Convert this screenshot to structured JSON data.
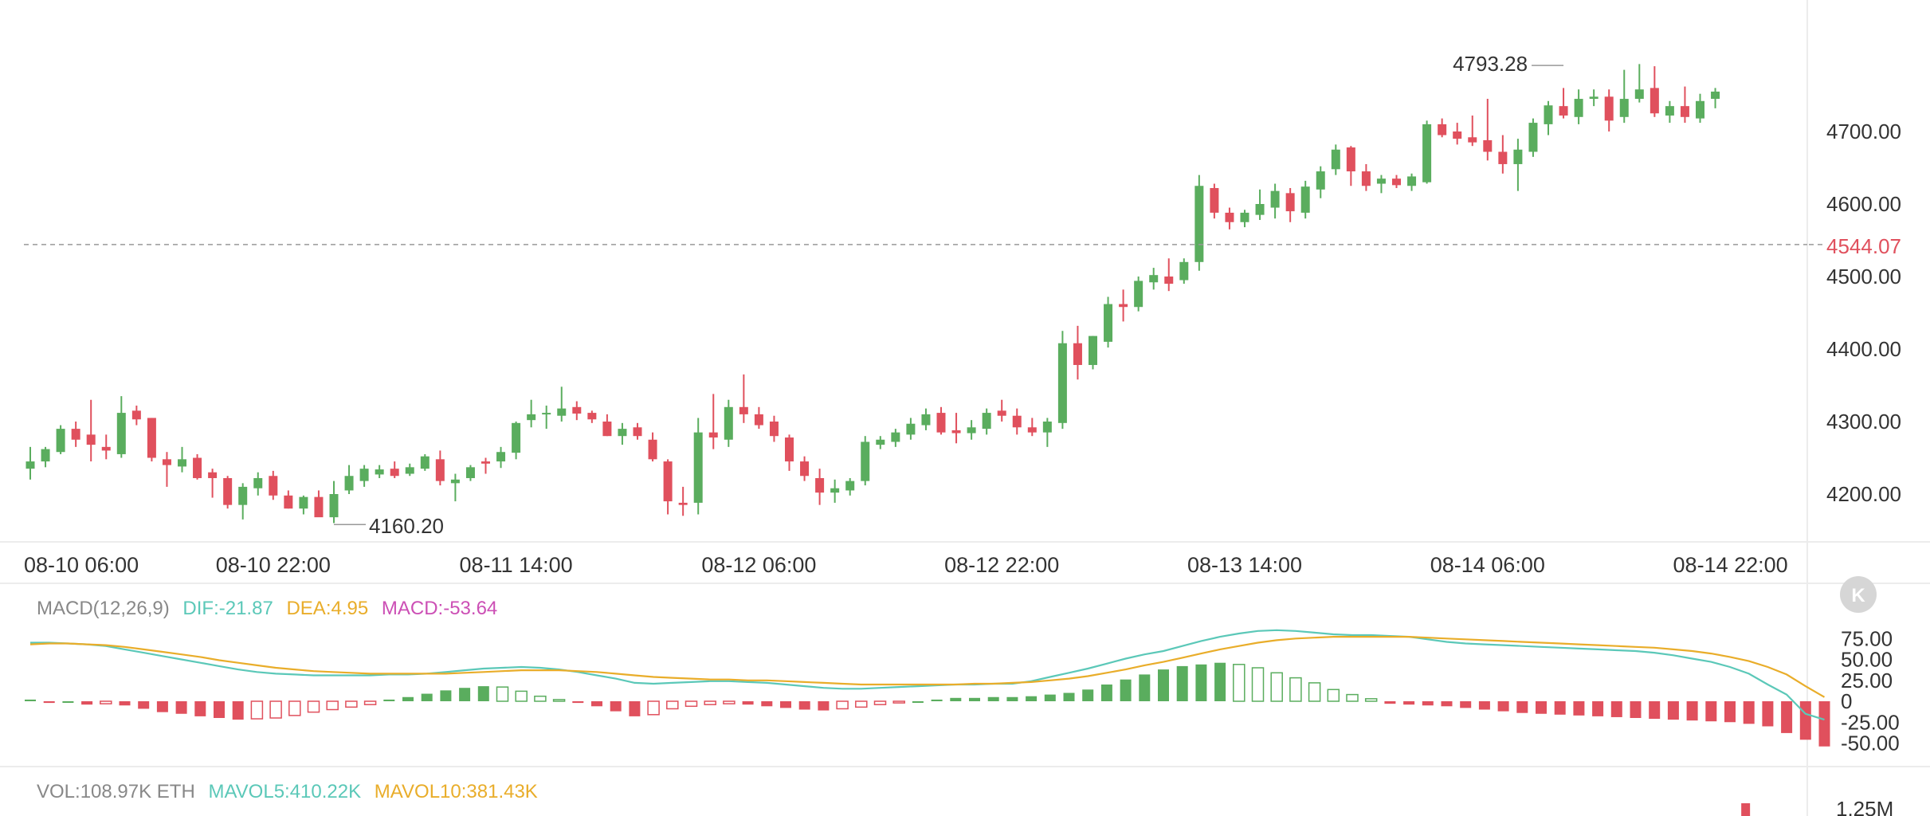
{
  "colors": {
    "up": "#5aad5e",
    "down": "#e0505d",
    "dif": "#5bc8b8",
    "dea": "#e9ad2a",
    "macd_label": "#cc4fb5",
    "last_price": "#e0505d",
    "grid": "#ececec",
    "text": "#333333",
    "muted": "#888888"
  },
  "badge": {
    "icon": "k-logo-icon",
    "glyph": "K"
  },
  "main_chart": {
    "current_price_label": "4544.07",
    "high_marker": "4793.28",
    "low_marker": "4160.20"
  },
  "macd_legend": {
    "params": "MACD(12,26,9)",
    "dif": "DIF:-21.87",
    "dea": "DEA:4.95",
    "macd": "MACD:-53.64"
  },
  "vol_legend": {
    "vol": "VOL:108.97K ETH",
    "mavol5": "MAVOL5:410.22K",
    "mavol10": "MAVOL10:381.43K"
  },
  "vol_axis_label": "1.25M",
  "chart_data": [
    {
      "type": "candlestick",
      "title": "",
      "price_axis_ticks": [
        4700,
        4600,
        4500,
        4400,
        4300,
        4200
      ],
      "price_tick_labels": [
        "4700.00",
        "4600.00",
        "4500.00",
        "4400.00",
        "4300.00",
        "4200.00"
      ],
      "ylim": [
        4130,
        4830
      ],
      "time_labels": [
        "08-10 06:00",
        "08-10 22:00",
        "08-11 14:00",
        "08-12 06:00",
        "08-12 22:00",
        "08-13 14:00",
        "08-14 06:00",
        "08-14 22:00"
      ],
      "time_label_candle_index": [
        0,
        16,
        32,
        48,
        64,
        80,
        96,
        112
      ],
      "current_price": 4544.07,
      "high": 4793.28,
      "high_index": 101,
      "low": 4160.2,
      "low_index": 20,
      "candles": [
        {
          "o": 4235,
          "h": 4265,
          "l": 4220,
          "c": 4245
        },
        {
          "o": 4245,
          "h": 4265,
          "l": 4237,
          "c": 4262
        },
        {
          "o": 4258,
          "h": 4295,
          "l": 4255,
          "c": 4290
        },
        {
          "o": 4290,
          "h": 4300,
          "l": 4265,
          "c": 4275
        },
        {
          "o": 4282,
          "h": 4330,
          "l": 4245,
          "c": 4268
        },
        {
          "o": 4265,
          "h": 4282,
          "l": 4248,
          "c": 4260
        },
        {
          "o": 4255,
          "h": 4335,
          "l": 4250,
          "c": 4312
        },
        {
          "o": 4315,
          "h": 4322,
          "l": 4295,
          "c": 4303
        },
        {
          "o": 4305,
          "h": 4305,
          "l": 4245,
          "c": 4250
        },
        {
          "o": 4248,
          "h": 4258,
          "l": 4210,
          "c": 4240
        },
        {
          "o": 4238,
          "h": 4265,
          "l": 4230,
          "c": 4248
        },
        {
          "o": 4250,
          "h": 4255,
          "l": 4220,
          "c": 4222
        },
        {
          "o": 4230,
          "h": 4235,
          "l": 4195,
          "c": 4222
        },
        {
          "o": 4222,
          "h": 4225,
          "l": 4180,
          "c": 4185
        },
        {
          "o": 4185,
          "h": 4215,
          "l": 4165,
          "c": 4210
        },
        {
          "o": 4208,
          "h": 4230,
          "l": 4198,
          "c": 4222
        },
        {
          "o": 4225,
          "h": 4232,
          "l": 4192,
          "c": 4198
        },
        {
          "o": 4198,
          "h": 4205,
          "l": 4180,
          "c": 4180
        },
        {
          "o": 4180,
          "h": 4198,
          "l": 4172,
          "c": 4196
        },
        {
          "o": 4196,
          "h": 4205,
          "l": 4175,
          "c": 4168
        },
        {
          "o": 4168,
          "h": 4218,
          "l": 4160,
          "c": 4200
        },
        {
          "o": 4205,
          "h": 4240,
          "l": 4200,
          "c": 4225
        },
        {
          "o": 4218,
          "h": 4240,
          "l": 4210,
          "c": 4235
        },
        {
          "o": 4227,
          "h": 4240,
          "l": 4222,
          "c": 4234
        },
        {
          "o": 4235,
          "h": 4245,
          "l": 4222,
          "c": 4225
        },
        {
          "o": 4228,
          "h": 4242,
          "l": 4225,
          "c": 4237
        },
        {
          "o": 4235,
          "h": 4255,
          "l": 4232,
          "c": 4252
        },
        {
          "o": 4248,
          "h": 4260,
          "l": 4212,
          "c": 4218
        },
        {
          "o": 4215,
          "h": 4228,
          "l": 4190,
          "c": 4220
        },
        {
          "o": 4222,
          "h": 4240,
          "l": 4218,
          "c": 4237
        },
        {
          "o": 4245,
          "h": 4250,
          "l": 4228,
          "c": 4242
        },
        {
          "o": 4245,
          "h": 4265,
          "l": 4236,
          "c": 4258
        },
        {
          "o": 4257,
          "h": 4300,
          "l": 4248,
          "c": 4298
        },
        {
          "o": 4302,
          "h": 4330,
          "l": 4292,
          "c": 4310
        },
        {
          "o": 4312,
          "h": 4322,
          "l": 4290,
          "c": 4312
        },
        {
          "o": 4308,
          "h": 4348,
          "l": 4300,
          "c": 4318
        },
        {
          "o": 4320,
          "h": 4328,
          "l": 4302,
          "c": 4311
        },
        {
          "o": 4312,
          "h": 4315,
          "l": 4298,
          "c": 4303
        },
        {
          "o": 4300,
          "h": 4310,
          "l": 4280,
          "c": 4280
        },
        {
          "o": 4280,
          "h": 4298,
          "l": 4268,
          "c": 4290
        },
        {
          "o": 4292,
          "h": 4298,
          "l": 4275,
          "c": 4280
        },
        {
          "o": 4275,
          "h": 4285,
          "l": 4245,
          "c": 4248
        },
        {
          "o": 4245,
          "h": 4248,
          "l": 4172,
          "c": 4190
        },
        {
          "o": 4188,
          "h": 4210,
          "l": 4170,
          "c": 4185
        },
        {
          "o": 4188,
          "h": 4305,
          "l": 4172,
          "c": 4285
        },
        {
          "o": 4285,
          "h": 4338,
          "l": 4262,
          "c": 4278
        },
        {
          "o": 4275,
          "h": 4330,
          "l": 4265,
          "c": 4320
        },
        {
          "o": 4320,
          "h": 4365,
          "l": 4298,
          "c": 4310
        },
        {
          "o": 4310,
          "h": 4320,
          "l": 4290,
          "c": 4295
        },
        {
          "o": 4300,
          "h": 4308,
          "l": 4272,
          "c": 4280
        },
        {
          "o": 4278,
          "h": 4282,
          "l": 4232,
          "c": 4245
        },
        {
          "o": 4245,
          "h": 4252,
          "l": 4218,
          "c": 4225
        },
        {
          "o": 4222,
          "h": 4235,
          "l": 4185,
          "c": 4202
        },
        {
          "o": 4202,
          "h": 4220,
          "l": 4188,
          "c": 4208
        },
        {
          "o": 4205,
          "h": 4222,
          "l": 4198,
          "c": 4218
        },
        {
          "o": 4218,
          "h": 4280,
          "l": 4212,
          "c": 4272
        },
        {
          "o": 4268,
          "h": 4280,
          "l": 4262,
          "c": 4275
        },
        {
          "o": 4272,
          "h": 4290,
          "l": 4265,
          "c": 4285
        },
        {
          "o": 4282,
          "h": 4305,
          "l": 4275,
          "c": 4297
        },
        {
          "o": 4295,
          "h": 4318,
          "l": 4288,
          "c": 4310
        },
        {
          "o": 4312,
          "h": 4320,
          "l": 4282,
          "c": 4285
        },
        {
          "o": 4288,
          "h": 4312,
          "l": 4270,
          "c": 4284
        },
        {
          "o": 4284,
          "h": 4302,
          "l": 4275,
          "c": 4292
        },
        {
          "o": 4290,
          "h": 4318,
          "l": 4282,
          "c": 4312
        },
        {
          "o": 4315,
          "h": 4330,
          "l": 4300,
          "c": 4308
        },
        {
          "o": 4308,
          "h": 4318,
          "l": 4282,
          "c": 4292
        },
        {
          "o": 4292,
          "h": 4305,
          "l": 4280,
          "c": 4285
        },
        {
          "o": 4285,
          "h": 4305,
          "l": 4265,
          "c": 4300
        },
        {
          "o": 4298,
          "h": 4425,
          "l": 4290,
          "c": 4408
        },
        {
          "o": 4408,
          "h": 4432,
          "l": 4358,
          "c": 4378
        },
        {
          "o": 4378,
          "h": 4418,
          "l": 4372,
          "c": 4418
        },
        {
          "o": 4410,
          "h": 4472,
          "l": 4402,
          "c": 4462
        },
        {
          "o": 4462,
          "h": 4482,
          "l": 4438,
          "c": 4458
        },
        {
          "o": 4458,
          "h": 4500,
          "l": 4452,
          "c": 4494
        },
        {
          "o": 4492,
          "h": 4512,
          "l": 4482,
          "c": 4502
        },
        {
          "o": 4500,
          "h": 4525,
          "l": 4480,
          "c": 4490
        },
        {
          "o": 4495,
          "h": 4525,
          "l": 4490,
          "c": 4520
        },
        {
          "o": 4520,
          "h": 4640,
          "l": 4508,
          "c": 4625
        },
        {
          "o": 4622,
          "h": 4628,
          "l": 4580,
          "c": 4588
        },
        {
          "o": 4588,
          "h": 4595,
          "l": 4565,
          "c": 4575
        },
        {
          "o": 4575,
          "h": 4592,
          "l": 4568,
          "c": 4588
        },
        {
          "o": 4585,
          "h": 4620,
          "l": 4578,
          "c": 4600
        },
        {
          "o": 4595,
          "h": 4628,
          "l": 4580,
          "c": 4618
        },
        {
          "o": 4615,
          "h": 4622,
          "l": 4575,
          "c": 4590
        },
        {
          "o": 4588,
          "h": 4632,
          "l": 4580,
          "c": 4624
        },
        {
          "o": 4620,
          "h": 4652,
          "l": 4608,
          "c": 4645
        },
        {
          "o": 4648,
          "h": 4682,
          "l": 4640,
          "c": 4675
        },
        {
          "o": 4678,
          "h": 4680,
          "l": 4625,
          "c": 4645
        },
        {
          "o": 4645,
          "h": 4655,
          "l": 4618,
          "c": 4625
        },
        {
          "o": 4628,
          "h": 4640,
          "l": 4615,
          "c": 4635
        },
        {
          "o": 4635,
          "h": 4640,
          "l": 4622,
          "c": 4626
        },
        {
          "o": 4625,
          "h": 4642,
          "l": 4618,
          "c": 4638
        },
        {
          "o": 4630,
          "h": 4715,
          "l": 4628,
          "c": 4710
        },
        {
          "o": 4710,
          "h": 4718,
          "l": 4692,
          "c": 4695
        },
        {
          "o": 4700,
          "h": 4712,
          "l": 4682,
          "c": 4690
        },
        {
          "o": 4692,
          "h": 4722,
          "l": 4680,
          "c": 4685
        },
        {
          "o": 4688,
          "h": 4745,
          "l": 4660,
          "c": 4672
        },
        {
          "o": 4672,
          "h": 4695,
          "l": 4642,
          "c": 4655
        },
        {
          "o": 4655,
          "h": 4690,
          "l": 4618,
          "c": 4675
        },
        {
          "o": 4672,
          "h": 4718,
          "l": 4665,
          "c": 4712
        },
        {
          "o": 4710,
          "h": 4742,
          "l": 4695,
          "c": 4736
        },
        {
          "o": 4735,
          "h": 4760,
          "l": 4718,
          "c": 4722
        },
        {
          "o": 4720,
          "h": 4758,
          "l": 4710,
          "c": 4745
        },
        {
          "o": 4745,
          "h": 4758,
          "l": 4735,
          "c": 4748
        },
        {
          "o": 4748,
          "h": 4758,
          "l": 4700,
          "c": 4715
        },
        {
          "o": 4720,
          "h": 4785,
          "l": 4712,
          "c": 4745
        },
        {
          "o": 4745,
          "h": 4793,
          "l": 4740,
          "c": 4758
        },
        {
          "o": 4760,
          "h": 4790,
          "l": 4720,
          "c": 4725
        },
        {
          "o": 4722,
          "h": 4742,
          "l": 4712,
          "c": 4735
        },
        {
          "o": 4735,
          "h": 4762,
          "l": 4712,
          "c": 4720
        },
        {
          "o": 4718,
          "h": 4752,
          "l": 4712,
          "c": 4742
        },
        {
          "o": 4745,
          "h": 4760,
          "l": 4732,
          "c": 4755
        }
      ]
    },
    {
      "type": "line",
      "title": "MACD(12,26,9)",
      "y_tick_labels": [
        "75.00",
        "50.00",
        "25.00",
        "0",
        "-25.00",
        "-50.00"
      ],
      "y_ticks": [
        75,
        50,
        25,
        0,
        -25,
        -50
      ],
      "ylim": [
        -65,
        95
      ],
      "series": [
        {
          "name": "DIF",
          "values": [
            70,
            70,
            69,
            68,
            66,
            62,
            58,
            54,
            50,
            46,
            42,
            38,
            35,
            33,
            32,
            31,
            31,
            31,
            31,
            32,
            32,
            33,
            35,
            37,
            39,
            40,
            41,
            40,
            38,
            35,
            31,
            27,
            22,
            21,
            22,
            23,
            24,
            24,
            23,
            22,
            20,
            18,
            16,
            15,
            15,
            16,
            17,
            18,
            19,
            20,
            20,
            21,
            21,
            24,
            29,
            34,
            39,
            45,
            51,
            56,
            60,
            66,
            72,
            77,
            81,
            84,
            85,
            84,
            82,
            80,
            79,
            79,
            78,
            77,
            74,
            71,
            69,
            68,
            67,
            66,
            65,
            64,
            63,
            62,
            61,
            60,
            58,
            55,
            51,
            47,
            41,
            33,
            20,
            8,
            -15,
            -22
          ]
        },
        {
          "name": "DEA",
          "values": [
            68,
            69,
            69,
            68,
            67,
            65,
            62,
            59,
            56,
            53,
            49,
            46,
            43,
            40,
            38,
            36,
            35,
            34,
            33,
            33,
            33,
            33,
            33,
            34,
            35,
            36,
            37,
            37,
            37,
            36,
            35,
            33,
            31,
            29,
            28,
            27,
            26,
            26,
            25,
            25,
            24,
            23,
            22,
            21,
            20,
            20,
            20,
            20,
            20,
            20,
            21,
            21,
            22,
            23,
            25,
            27,
            30,
            34,
            38,
            43,
            47,
            52,
            57,
            62,
            66,
            70,
            73,
            75,
            76,
            77,
            77,
            77,
            77,
            77,
            76,
            75,
            74,
            73,
            72,
            71,
            70,
            69,
            68,
            67,
            66,
            65,
            64,
            62,
            60,
            57,
            53,
            48,
            41,
            32,
            18,
            5
          ]
        },
        {
          "name": "MACD",
          "values": [
            2,
            -2,
            0,
            -4,
            -3,
            -5,
            -9,
            -13,
            -15,
            -18,
            -20,
            -22,
            -21,
            -20,
            -17,
            -13,
            -10,
            -7,
            -4,
            2,
            5,
            9,
            13,
            16,
            18,
            17,
            12,
            6,
            2,
            -2,
            -6,
            -12,
            -18,
            -16,
            -9,
            -6,
            -4,
            -3,
            -4,
            -6,
            -8,
            -10,
            -11,
            -9,
            -7,
            -4,
            -2,
            0,
            2,
            4,
            4,
            5,
            5,
            6,
            8,
            10,
            14,
            20,
            26,
            32,
            38,
            42,
            44,
            46,
            44,
            40,
            34,
            28,
            22,
            14,
            8,
            3,
            -3,
            -4,
            -5,
            -6,
            -8,
            -10,
            -12,
            -14,
            -15,
            -16,
            -17,
            -18,
            -19,
            -20,
            -21,
            -22,
            -23,
            -24,
            -25,
            -27,
            -30,
            -38,
            -46,
            -54
          ]
        }
      ]
    },
    {
      "type": "bar",
      "title": "VOL",
      "y_tick_labels": [
        "1.25M"
      ],
      "visible_bars": [
        {
          "candle_index": 113,
          "direction": "down"
        }
      ]
    }
  ]
}
